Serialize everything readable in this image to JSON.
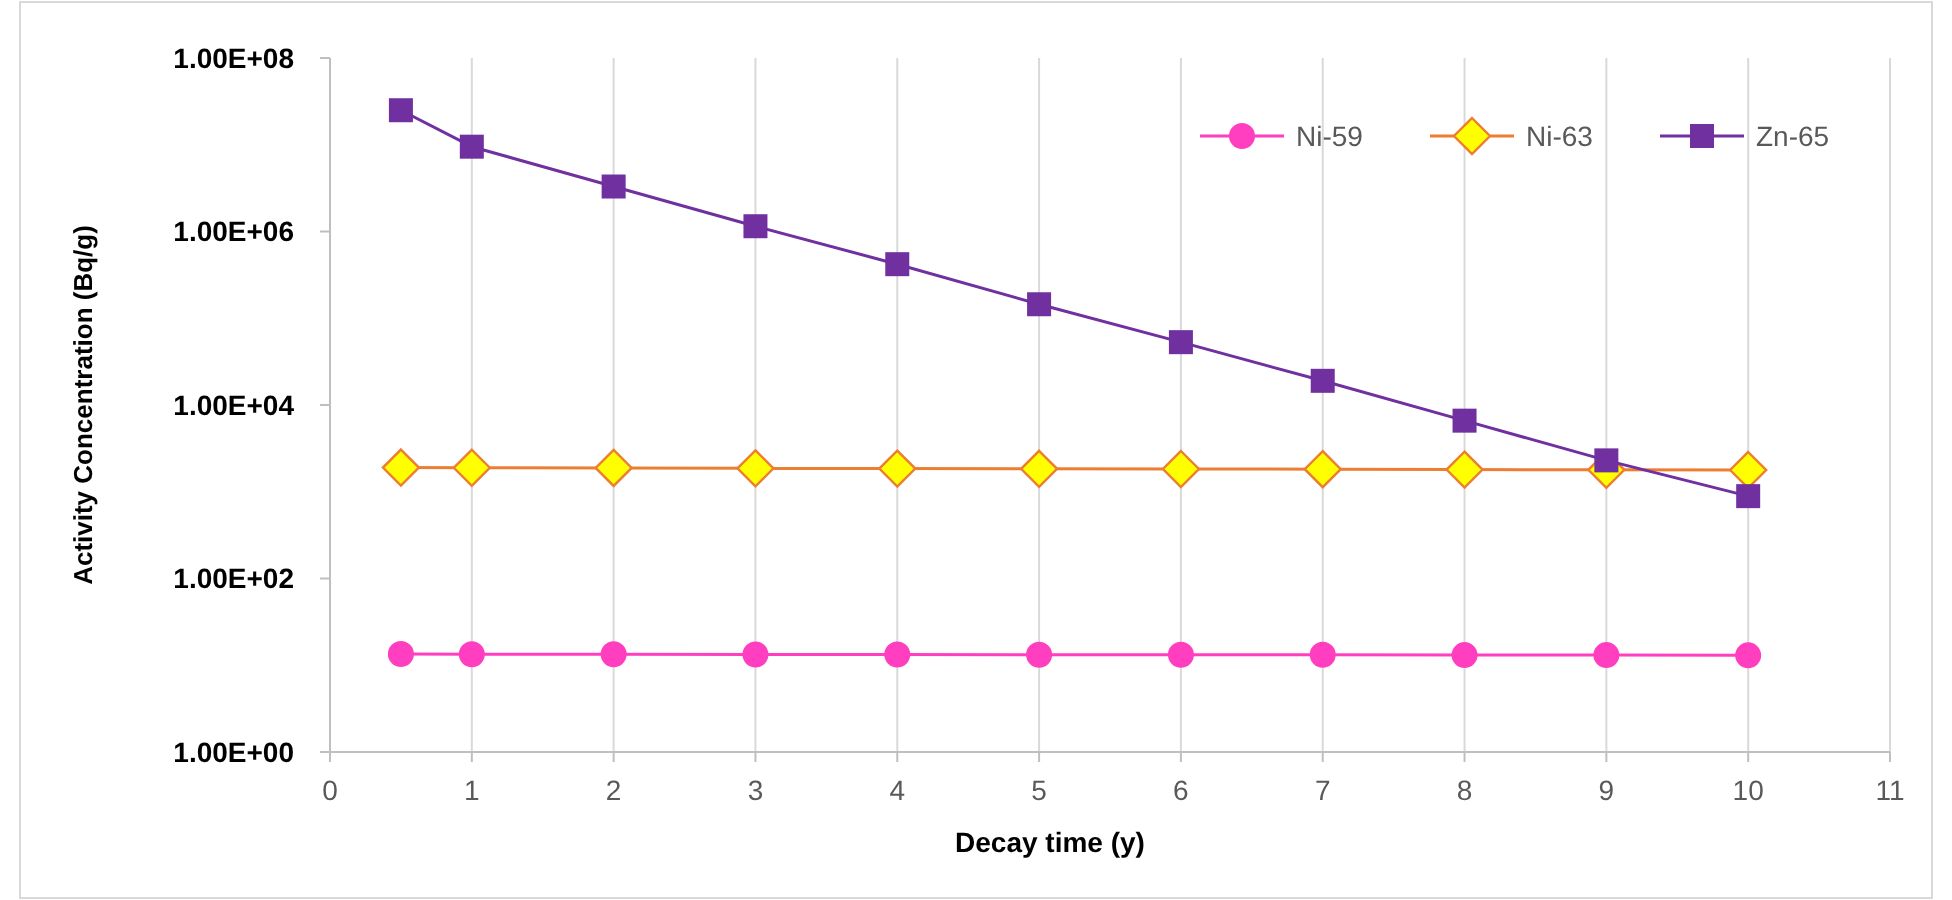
{
  "chart_data": {
    "type": "line",
    "xlabel": "Decay time (y)",
    "ylabel": "Activity Concentration (Bq/g)",
    "log": "y",
    "x": [
      0.5,
      1,
      2,
      3,
      4,
      5,
      6,
      7,
      8,
      9,
      10
    ],
    "xlim": [
      0,
      11
    ],
    "xticks": [
      0,
      1,
      2,
      3,
      4,
      5,
      6,
      7,
      8,
      9,
      10,
      11
    ],
    "ylim": [
      1,
      100000000
    ],
    "yticks": [
      {
        "value": 1,
        "label": "1.00E+00"
      },
      {
        "value": 100,
        "label": "1.00E+02"
      },
      {
        "value": 10000,
        "label": "1.00E+04"
      },
      {
        "value": 1000000,
        "label": "1.00E+06"
      },
      {
        "value": 100000000,
        "label": "1.00E+08"
      }
    ],
    "grid": "x",
    "legend": "top right",
    "series": [
      {
        "name": "Ni-59",
        "color": "#ff3fbf",
        "marker": "circle",
        "values": [
          13.5,
          13.4,
          13.4,
          13.3,
          13.3,
          13.2,
          13.2,
          13.2,
          13.1,
          13.1,
          13.0
        ]
      },
      {
        "name": "Ni-63",
        "color": "#ed7d31",
        "marker": "diamond",
        "values": [
          1900,
          1890,
          1880,
          1860,
          1850,
          1840,
          1830,
          1820,
          1800,
          1790,
          1780
        ]
      },
      {
        "name": "Zn-65",
        "color": "#7030a0",
        "marker": "square",
        "values": [
          25000000,
          9500000,
          3300000,
          1150000,
          420000,
          145000,
          53000,
          19000,
          6600,
          2300,
          890
        ]
      }
    ]
  }
}
